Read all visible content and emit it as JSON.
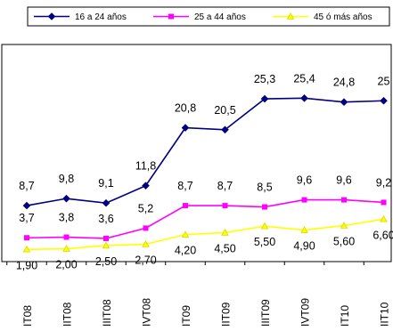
{
  "chart_data": {
    "type": "line",
    "title": "",
    "xlabel": "",
    "ylabel": "",
    "categories": [
      "I T08",
      "II T08",
      "III T08",
      "IV T08",
      "I T09",
      "II T09",
      "III T09",
      "IV T09",
      "I T10",
      "II T10"
    ],
    "tick_labels_visible": [
      "IT08",
      "IIT08",
      "IIIT08",
      "IVT08",
      "IT09",
      "IIT09",
      "IIIT09",
      "IVT09",
      "IT10",
      "IIT10"
    ],
    "ylim": [
      0,
      30
    ],
    "grid": false,
    "legend_position": "top",
    "series": [
      {
        "name": "16 a 24 años",
        "color": "#000080",
        "marker": "diamond",
        "values": [
          8.7,
          9.8,
          9.1,
          11.8,
          20.8,
          20.5,
          25.3,
          25.4,
          24.8,
          25
        ],
        "labels": [
          "8,7",
          "9,8",
          "9,1",
          "11,8",
          "20,8",
          "20,5",
          "25,3",
          "25,4",
          "24,8",
          "25"
        ]
      },
      {
        "name": "25 a 44 años",
        "color": "#ff00ff",
        "marker": "square",
        "values": [
          3.7,
          3.8,
          3.6,
          5.2,
          8.7,
          8.7,
          8.5,
          9.6,
          9.6,
          9.2
        ],
        "labels": [
          "3,7",
          "3,8",
          "3,6",
          "5,2",
          "8,7",
          "8,7",
          "8,5",
          "9,6",
          "9,6",
          "9,2"
        ]
      },
      {
        "name": "45 ó más años",
        "color": "#ffff00",
        "marker": "triangle",
        "values": [
          1.9,
          2.0,
          2.5,
          2.7,
          4.2,
          4.5,
          5.5,
          4.9,
          5.6,
          6.6
        ],
        "labels": [
          "1,90",
          "2,00",
          "2,50",
          "2,70",
          "4,20",
          "4,50",
          "5,50",
          "4,90",
          "5,60",
          "6,60"
        ]
      }
    ]
  }
}
